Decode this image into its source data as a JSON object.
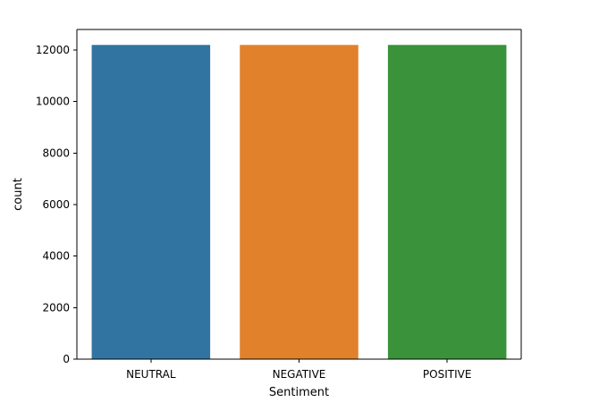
{
  "chart_data": {
    "type": "bar",
    "title": "",
    "xlabel": "Sentiment",
    "ylabel": "count",
    "categories": [
      "NEUTRAL",
      "NEGATIVE",
      "POSITIVE"
    ],
    "values": [
      12200,
      12200,
      12200
    ],
    "colors": [
      "#3274a1",
      "#e1812c",
      "#3a923a"
    ],
    "ylim": [
      0,
      12800
    ],
    "yticks": [
      0,
      2000,
      4000,
      6000,
      8000,
      10000,
      12000
    ],
    "ytick_labels": [
      "0",
      "2000",
      "4000",
      "6000",
      "8000",
      "10000",
      "12000"
    ],
    "grid": false,
    "legend": "none"
  }
}
